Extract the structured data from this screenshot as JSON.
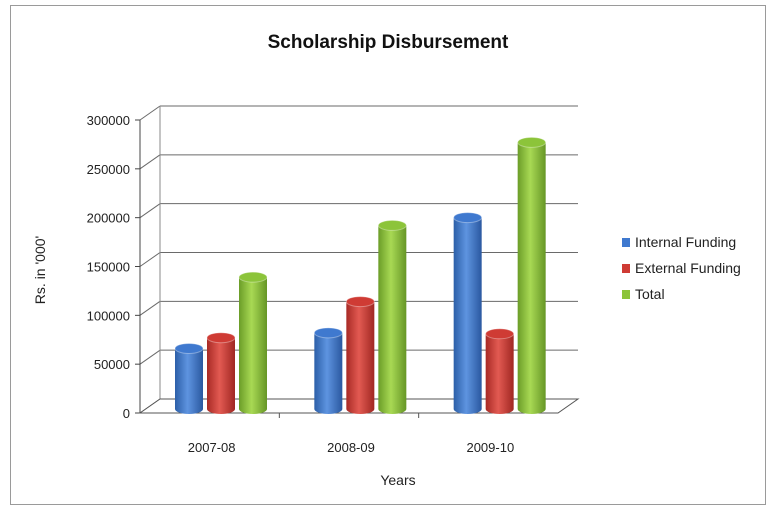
{
  "chart_data": {
    "type": "bar",
    "title": "Scholarship Disbursement",
    "xlabel": "Years",
    "ylabel": "Rs. in '000'",
    "categories": [
      "2007-08",
      "2008-09",
      "2009-10"
    ],
    "series": [
      {
        "name": "Internal Funding",
        "values": [
          62000,
          78000,
          196000
        ],
        "color": "#3f79cf"
      },
      {
        "name": "External Funding",
        "values": [
          73000,
          110000,
          77000
        ],
        "color": "#cf3b34"
      },
      {
        "name": "Total",
        "values": [
          135000,
          188000,
          273000
        ],
        "color": "#8cc43a"
      }
    ],
    "ylim": [
      0,
      300000
    ],
    "yticks": [
      "0",
      "50000",
      "100000",
      "150000",
      "200000",
      "250000",
      "300000"
    ],
    "grid": true,
    "legend_position": "right"
  }
}
